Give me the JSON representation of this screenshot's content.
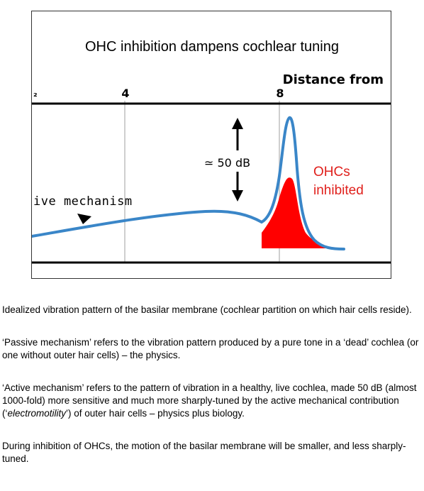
{
  "figure": {
    "title": "OHC inhibition dampens cochlear tuning",
    "axis_title": "Distance from",
    "ticks": [
      "4",
      "8"
    ],
    "left_cut_label": "₂",
    "curve_label": "ive mechanism",
    "db_label": "≃ 50 dB",
    "ohc_label_line1": "OHCs",
    "ohc_label_line2": "inhibited",
    "colors": {
      "active_curve": "#3a86c8",
      "inhibited_fill": "#ff0000",
      "ohc_text": "#e0201c",
      "grid": "#cfcfcf"
    }
  },
  "caption": {
    "p1": "Idealized vibration pattern of the basilar membrane (cochlear partition on which hair cells reside).",
    "p2": "‘Passive mechanism’ refers to the vibration pattern produced by a pure tone in a ‘dead’ cochlea  (or one without outer hair cells) – the physics.",
    "p3_a": "‘Active mechanism’ refers to the pattern of vibration in a healthy, live cochlea, made 50 dB (almost 1000-fold) more sensitive and much more sharply-tuned by the active mechanical contribution  (‘",
    "p3_em": "electromotility",
    "p3_b": "’) of outer hair cells – physics plus biology.",
    "p4": "During inhibition of OHCs, the motion of the basilar membrane will be smaller, and less sharply-tuned."
  }
}
